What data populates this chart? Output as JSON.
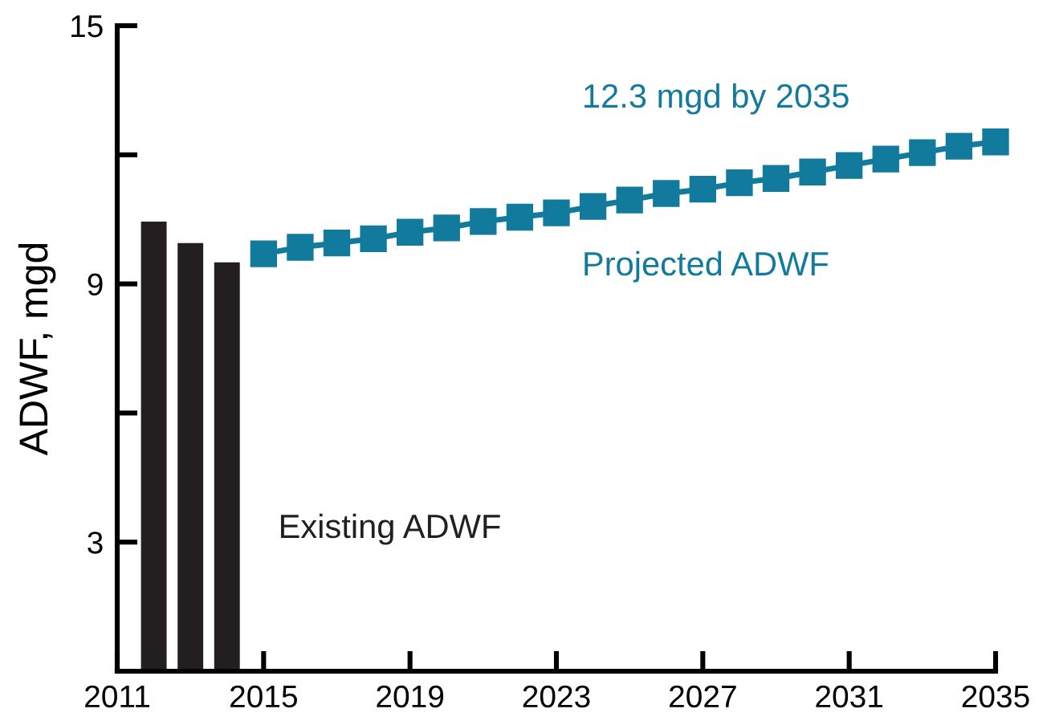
{
  "chart_data": {
    "type": "bar",
    "ylabel": "ADWF, mgd",
    "xlim": [
      2011,
      2035
    ],
    "xticks": [
      2011,
      2015,
      2019,
      2023,
      2027,
      2031,
      2035
    ],
    "ylim": [
      0,
      15
    ],
    "yticks": [
      3,
      {
        "value": 6,
        "label": null
      },
      9,
      {
        "value": 12,
        "label": null
      },
      15
    ],
    "grid": false,
    "legend": false,
    "series": [
      {
        "name": "Existing ADWF",
        "color": "#231f20",
        "x": [
          2012,
          2013,
          2014
        ],
        "values": [
          10.45,
          9.95,
          9.5
        ]
      },
      {
        "name": "Projected ADWF",
        "type": "line",
        "color": "#127a9c",
        "marker": "square",
        "line_style": "solid",
        "x": [
          2015,
          2016,
          2017,
          2018,
          2019,
          2020,
          2021,
          2022,
          2023,
          2024,
          2025,
          2026,
          2027,
          2028,
          2029,
          2030,
          2031,
          2032,
          2033,
          2034,
          2035
        ],
        "values": [
          9.7,
          9.85,
          9.95,
          10.05,
          10.2,
          10.3,
          10.45,
          10.55,
          10.65,
          10.8,
          10.95,
          11.1,
          11.2,
          11.35,
          11.45,
          11.6,
          11.75,
          11.9,
          12.05,
          12.2,
          12.3
        ]
      }
    ],
    "annotations": [
      "12.3 mgd by 2035"
    ]
  }
}
